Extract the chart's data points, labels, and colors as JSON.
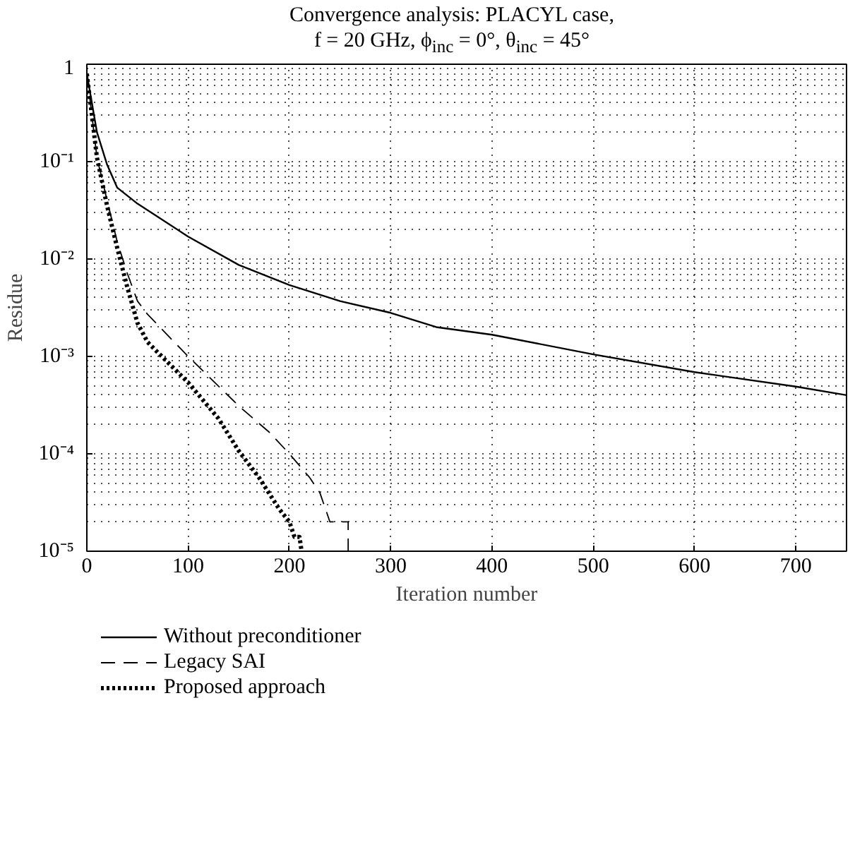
{
  "chart_data": {
    "type": "line",
    "title": "Convergence analysis: PLACYL case,",
    "subtitle": "f = 20 GHz, ϕ$_{inc}$ = 0°, θ$_{inc}$ = 45°",
    "xlabel": "Iteration number",
    "ylabel": "Residue",
    "log": "y",
    "grid": true,
    "legend": "bottom left",
    "xlim": [
      0,
      750
    ],
    "xticks": [
      0,
      100,
      200,
      300,
      400,
      500,
      600,
      700
    ],
    "ylim": [
      1e-05,
      1
    ],
    "yticks": [
      {
        "value": 1e-05,
        "label": "10⁻⁵"
      },
      {
        "value": 0.0001,
        "label": "10⁻⁴"
      },
      {
        "value": 0.001,
        "label": "10⁻³"
      },
      {
        "value": 0.01,
        "label": "10⁻²"
      },
      {
        "value": 0.1,
        "label": "10⁻¹"
      },
      1
    ],
    "series": [
      {
        "name": "Without preconditioner",
        "color": "#000000",
        "line_style": "solid",
        "x": [
          0,
          10,
          20,
          30,
          50,
          100,
          150,
          200,
          250,
          300,
          345,
          400,
          500,
          600,
          700,
          750
        ],
        "values": [
          0.8,
          0.2,
          0.093,
          0.054,
          0.037,
          0.017,
          0.0087,
          0.0054,
          0.0037,
          0.0028,
          0.002,
          0.00167,
          0.00105,
          0.00069,
          0.00049,
          0.0004
        ]
      },
      {
        "name": "Legacy SAI",
        "color": "#000000",
        "line_style": "dashed",
        "x": [
          0,
          10,
          20,
          30,
          40,
          50,
          60,
          100,
          150,
          180,
          200,
          220,
          230,
          240,
          258,
          258
        ],
        "values": [
          0.8,
          0.11,
          0.04,
          0.015,
          0.0071,
          0.0037,
          0.0027,
          0.001,
          0.00031,
          0.000167,
          0.0001,
          5.7e-05,
          4e-05,
          2e-05,
          2e-05,
          1e-05
        ]
      },
      {
        "name": "Proposed approach",
        "color": "#000000",
        "line_style": "dotted",
        "x": [
          0,
          10,
          20,
          30,
          40,
          50,
          60,
          70,
          100,
          130,
          150,
          170,
          190,
          200,
          205,
          210,
          212
        ],
        "values": [
          0.8,
          0.11,
          0.035,
          0.013,
          0.0051,
          0.0022,
          0.0014,
          0.0011,
          0.00054,
          0.00023,
          0.000107,
          5.7e-05,
          2.7e-05,
          2e-05,
          1.4e-05,
          1.4e-05,
          1e-05
        ]
      }
    ]
  }
}
